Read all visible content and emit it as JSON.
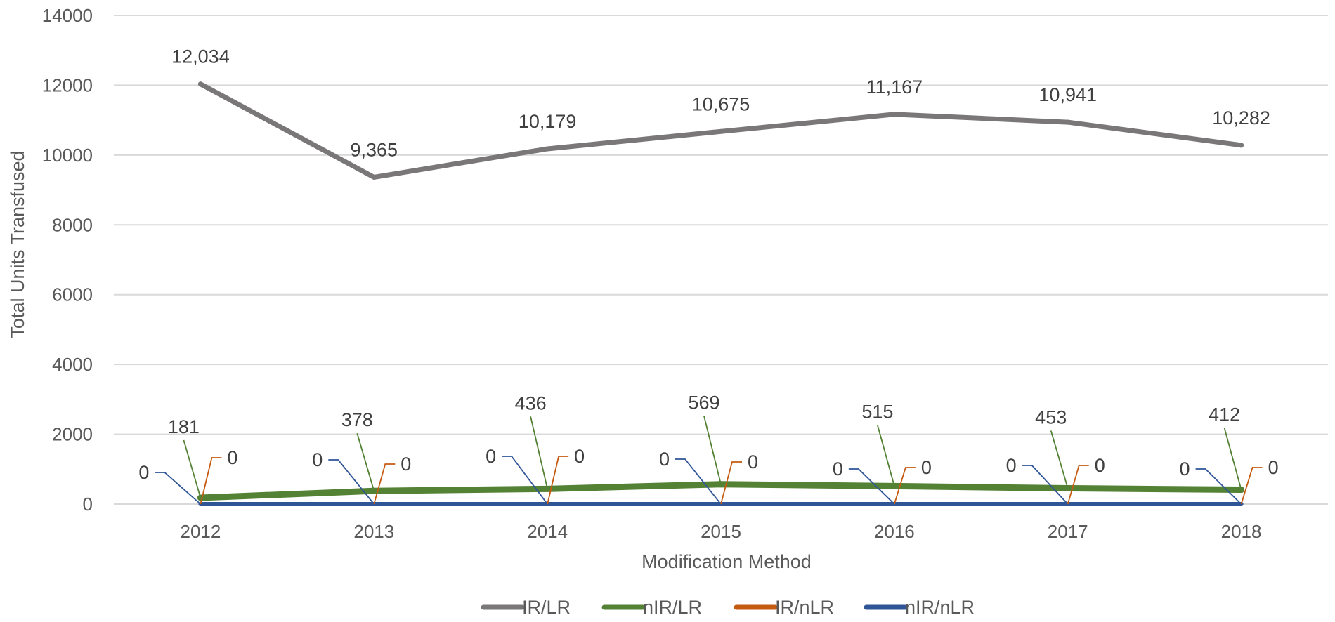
{
  "chart_data": {
    "type": "line",
    "title": "",
    "xlabel": "Modification Method",
    "ylabel": "Total Units Transfused",
    "categories": [
      "2012",
      "2013",
      "2014",
      "2015",
      "2016",
      "2017",
      "2018"
    ],
    "ylim": [
      0,
      14000
    ],
    "yticks": [
      "0",
      "2000",
      "4000",
      "6000",
      "8000",
      "10000",
      "12000",
      "14000"
    ],
    "grid": true,
    "legend_position": "bottom",
    "series": [
      {
        "name": "IR/LR",
        "color": "#7a7778",
        "values": [
          12034,
          9365,
          10179,
          10675,
          11167,
          10941,
          10282
        ],
        "labels": [
          "12,034",
          "9,365",
          "10,179",
          "10,675",
          "11,167",
          "10,941",
          "10,282"
        ]
      },
      {
        "name": "nIR/LR",
        "color": "#548235",
        "values": [
          181,
          378,
          436,
          569,
          515,
          453,
          412
        ],
        "labels": [
          "181",
          "378",
          "436",
          "569",
          "515",
          "453",
          "412"
        ]
      },
      {
        "name": "IR/nLR",
        "color": "#c55a11",
        "values": [
          0,
          0,
          0,
          0,
          0,
          0,
          0
        ],
        "labels": [
          "0",
          "0",
          "0",
          "0",
          "0",
          "0",
          "0"
        ]
      },
      {
        "name": "nIR/nLR",
        "color": "#2f5597",
        "values": [
          0,
          0,
          0,
          0,
          0,
          0,
          0
        ],
        "labels": [
          "0",
          "0",
          "0",
          "0",
          "0",
          "0",
          "0"
        ]
      }
    ]
  }
}
